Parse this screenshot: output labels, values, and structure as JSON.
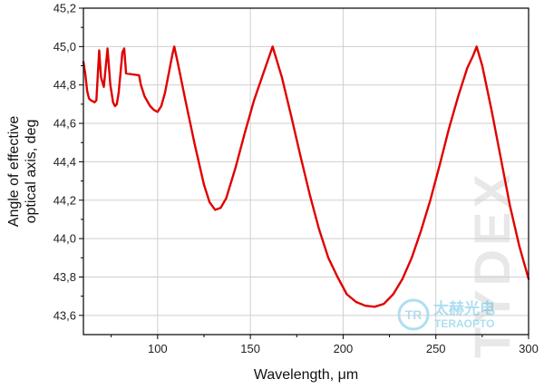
{
  "chart_data": {
    "type": "line",
    "xlabel": "Wavelength, μm",
    "ylabel_lines": [
      "Angle of effective",
      "optical axis, deg"
    ],
    "xlim": [
      60,
      300
    ],
    "ylim": [
      43.5,
      45.2
    ],
    "x_ticks": [
      100,
      150,
      200,
      250,
      300
    ],
    "x_tick_labels": [
      "100",
      "150",
      "200",
      "250",
      "300"
    ],
    "y_ticks": [
      43.6,
      43.8,
      44.0,
      44.2,
      44.4,
      44.6,
      44.8,
      45.0,
      45.2
    ],
    "y_tick_labels": [
      "43,6",
      "43,8",
      "44,0",
      "44,2",
      "44,4",
      "44,6",
      "44,8",
      "45,0",
      "45,2"
    ],
    "grid": true,
    "series": [
      {
        "color": "#e00000",
        "points": [
          [
            60,
            44.92
          ],
          [
            61,
            44.86
          ],
          [
            62,
            44.77
          ],
          [
            63,
            44.73
          ],
          [
            64,
            44.72
          ],
          [
            66,
            44.71
          ],
          [
            67,
            44.72
          ],
          [
            68.5,
            44.98
          ],
          [
            69.5,
            44.84
          ],
          [
            71,
            44.79
          ],
          [
            73,
            44.99
          ],
          [
            74.5,
            44.8
          ],
          [
            76,
            44.71
          ],
          [
            77,
            44.69
          ],
          [
            78,
            44.7
          ],
          [
            79,
            44.76
          ],
          [
            81,
            44.97
          ],
          [
            82,
            44.99
          ],
          [
            83,
            44.86
          ],
          [
            90,
            44.85
          ],
          [
            91,
            44.8
          ],
          [
            93,
            44.74
          ],
          [
            96,
            44.69
          ],
          [
            98,
            44.67
          ],
          [
            100,
            44.66
          ],
          [
            102,
            44.69
          ],
          [
            104,
            44.76
          ],
          [
            106,
            44.86
          ],
          [
            108,
            44.96
          ],
          [
            109,
            45.0
          ],
          [
            111,
            44.91
          ],
          [
            115,
            44.72
          ],
          [
            120,
            44.49
          ],
          [
            125,
            44.28
          ],
          [
            128,
            44.19
          ],
          [
            131,
            44.15
          ],
          [
            134,
            44.16
          ],
          [
            137,
            44.21
          ],
          [
            142,
            44.37
          ],
          [
            147,
            44.55
          ],
          [
            152,
            44.72
          ],
          [
            157,
            44.86
          ],
          [
            162,
            45.0
          ],
          [
            167,
            44.84
          ],
          [
            172,
            44.64
          ],
          [
            177,
            44.43
          ],
          [
            182,
            44.23
          ],
          [
            187,
            44.05
          ],
          [
            192,
            43.9
          ],
          [
            197,
            43.8
          ],
          [
            202,
            43.71
          ],
          [
            207,
            43.67
          ],
          [
            212,
            43.65
          ],
          [
            217,
            43.645
          ],
          [
            222,
            43.66
          ],
          [
            227,
            43.71
          ],
          [
            232,
            43.79
          ],
          [
            237,
            43.9
          ],
          [
            242,
            44.04
          ],
          [
            247,
            44.2
          ],
          [
            252,
            44.38
          ],
          [
            257,
            44.57
          ],
          [
            262,
            44.74
          ],
          [
            267,
            44.89
          ],
          [
            270,
            44.95
          ],
          [
            272,
            45.0
          ],
          [
            275,
            44.9
          ],
          [
            280,
            44.67
          ],
          [
            285,
            44.42
          ],
          [
            290,
            44.17
          ],
          [
            295,
            43.96
          ],
          [
            300,
            43.79
          ]
        ]
      }
    ]
  },
  "watermark": {
    "brand_text": "TYDEX",
    "logo_mark": "TR",
    "logo_cn": "太赫光电",
    "logo_en": "TERAOPTO"
  }
}
